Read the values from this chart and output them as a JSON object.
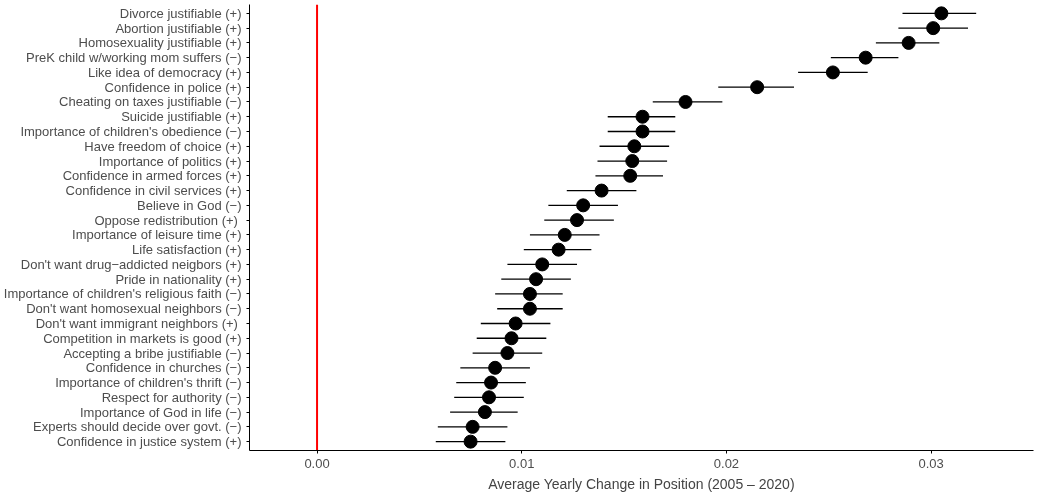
{
  "chart_data": {
    "type": "scatter",
    "orientation": "horizontal",
    "xlabel": "Average Yearly Change in Position (2005 – 2020)",
    "categories": [
      "Divorce justifiable (+)",
      "Abortion justifiable (+)",
      "Homosexuality justifiable (+)",
      "PreK child w/working mom suffers (−)",
      "Like idea of democracy (+)",
      "Confidence in police (+)",
      "Cheating on taxes justifiable (−)",
      "Suicide justifiable (+)",
      "Importance of children's obedience (−)",
      "Have freedom of choice (+)",
      "Importance of politics (+)",
      "Confidence in armed forces (+)",
      "Confidence in civil services (+)",
      "Believe in God (−)",
      "Oppose redistribution  (+)",
      "Importance of leisure time (+)",
      "Life satisfaction (+)",
      "Don't want drug−addicted neigbors (+)",
      "Pride in nationality (+)",
      "Importance of children's religious faith (−)",
      "Don't want homosexual neighbors (−)",
      "Don't want immigrant neighbors  (+)",
      "Competition in markets is good (+)",
      "Accepting a bribe justifiable (−)",
      "Confidence in churches (−)",
      "Importance of children's thrift (−)",
      "Respect for authority (−)",
      "Importance of God in life (−)",
      "Experts should decide over govt. (−)",
      "Confidence in justice system (+)"
    ],
    "values": [
      0.0305,
      0.0301,
      0.0289,
      0.0268,
      0.0252,
      0.0215,
      0.018,
      0.0159,
      0.0159,
      0.0155,
      0.0154,
      0.0153,
      0.0139,
      0.013,
      0.0127,
      0.0121,
      0.0118,
      0.011,
      0.0107,
      0.0104,
      0.0104,
      0.0097,
      0.0095,
      0.0093,
      0.0087,
      0.0085,
      0.0084,
      0.0082,
      0.0076,
      0.0075
    ],
    "errors": [
      [
        0.0286,
        0.0322
      ],
      [
        0.0284,
        0.0318
      ],
      [
        0.0273,
        0.0304
      ],
      [
        0.0251,
        0.0284
      ],
      [
        0.0235,
        0.0269
      ],
      [
        0.0196,
        0.0233
      ],
      [
        0.0164,
        0.0198
      ],
      [
        0.0142,
        0.0175
      ],
      [
        0.0142,
        0.0175
      ],
      [
        0.0138,
        0.0172
      ],
      [
        0.0137,
        0.0171
      ],
      [
        0.0136,
        0.0169
      ],
      [
        0.0122,
        0.0156
      ],
      [
        0.0113,
        0.0147
      ],
      [
        0.0111,
        0.0145
      ],
      [
        0.0104,
        0.0138
      ],
      [
        0.0101,
        0.0134
      ],
      [
        0.0093,
        0.0127
      ],
      [
        0.009,
        0.0124
      ],
      [
        0.0087,
        0.012
      ],
      [
        0.0088,
        0.012
      ],
      [
        0.008,
        0.0114
      ],
      [
        0.0078,
        0.0112
      ],
      [
        0.0076,
        0.011
      ],
      [
        0.007,
        0.0104
      ],
      [
        0.0068,
        0.0102
      ],
      [
        0.0067,
        0.0101
      ],
      [
        0.0065,
        0.0098
      ],
      [
        0.0059,
        0.0093
      ],
      [
        0.0058,
        0.0092
      ]
    ],
    "color": "#000000",
    "marker": "circle",
    "xlim": [
      -0.0033,
      0.035
    ],
    "xticks": [
      {
        "value": 0,
        "label": "0.00"
      },
      {
        "value": 0.01,
        "label": "0.01"
      },
      {
        "value": 0.02,
        "label": "0.02"
      },
      {
        "value": 0.03,
        "label": "0.03"
      }
    ],
    "ref_lines": [
      {
        "axis": "x",
        "value": 0,
        "color": "#ff0000"
      }
    ],
    "grid": false
  }
}
